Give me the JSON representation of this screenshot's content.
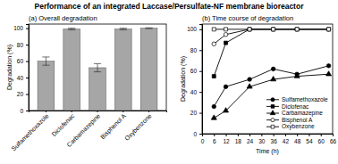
{
  "title": "Performance of an integrated Laccase/Persulfate-NF membrane bioreactor",
  "chart_data": [
    {
      "type": "bar",
      "title": "(a) Overall degradation",
      "y_label": "Degradation (%)",
      "categories": [
        "Sulfamethoxazole",
        "Diclofenac",
        "Carbamazepine",
        "Bisphenol A",
        "Oxybenzone"
      ],
      "values": [
        60,
        99,
        52,
        99,
        100
      ],
      "errors": [
        5,
        1,
        5,
        1,
        0.5
      ],
      "color": "#a6a6a6",
      "ylim": [
        0,
        105
      ],
      "yticks": [
        0,
        20,
        40,
        60,
        80,
        100
      ]
    },
    {
      "type": "line",
      "title": "(b) Time course of degradation",
      "x_label": "Time (h)",
      "y_label": "Degradation (%)",
      "x": [
        6,
        12,
        24,
        36,
        48,
        64
      ],
      "series": [
        {
          "name": "Sulfamethoxazole",
          "color": "#000000",
          "marker": "circle",
          "values": [
            26,
            45,
            52,
            62,
            57,
            65
          ]
        },
        {
          "name": "Diclofenac",
          "color": "#000000",
          "marker": "square",
          "values": [
            55,
            87,
            100,
            100,
            100,
            100
          ]
        },
        {
          "name": "Carbamazepine",
          "color": "#000000",
          "marker": "triangle",
          "values": [
            15,
            22,
            45,
            52,
            55,
            57
          ]
        },
        {
          "name": "Bisphenol A",
          "color": "#000000",
          "marker": "circle-open",
          "values": [
            86,
            95,
            100,
            100,
            100,
            100
          ]
        },
        {
          "name": "Oxybenzone",
          "color": "#000000",
          "marker": "square-open",
          "values": [
            100,
            100,
            100,
            100,
            100,
            100
          ]
        }
      ],
      "xlim": [
        0,
        66
      ],
      "xticks": [
        0,
        6,
        12,
        18,
        24,
        30,
        36,
        42,
        48,
        54,
        60,
        66
      ],
      "ylim": [
        0,
        105
      ],
      "yticks": [
        0,
        20,
        40,
        60,
        80,
        100
      ],
      "legend": "lower right"
    }
  ]
}
